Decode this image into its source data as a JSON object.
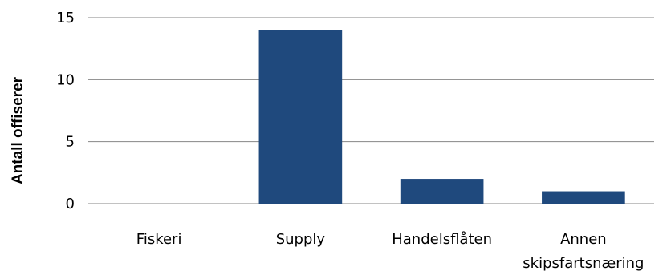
{
  "chart_data": {
    "type": "bar",
    "title": "",
    "xlabel": "",
    "ylabel": "Antall offiserer",
    "categories": [
      "Fiskeri",
      "Supply",
      "Handelsflåten",
      "Annen skipsfartsnæring"
    ],
    "category_lines": [
      [
        "Fiskeri"
      ],
      [
        "Supply"
      ],
      [
        "Handelsflåten"
      ],
      [
        "Annen",
        "skipsfartsnæring"
      ]
    ],
    "values": [
      0,
      14,
      2,
      1
    ],
    "ylim": [
      0,
      15
    ],
    "yticks": [
      0,
      5,
      10,
      15
    ],
    "grid": true,
    "legend": "none",
    "bar_color": "#1f497d",
    "grid_color": "#868686"
  }
}
